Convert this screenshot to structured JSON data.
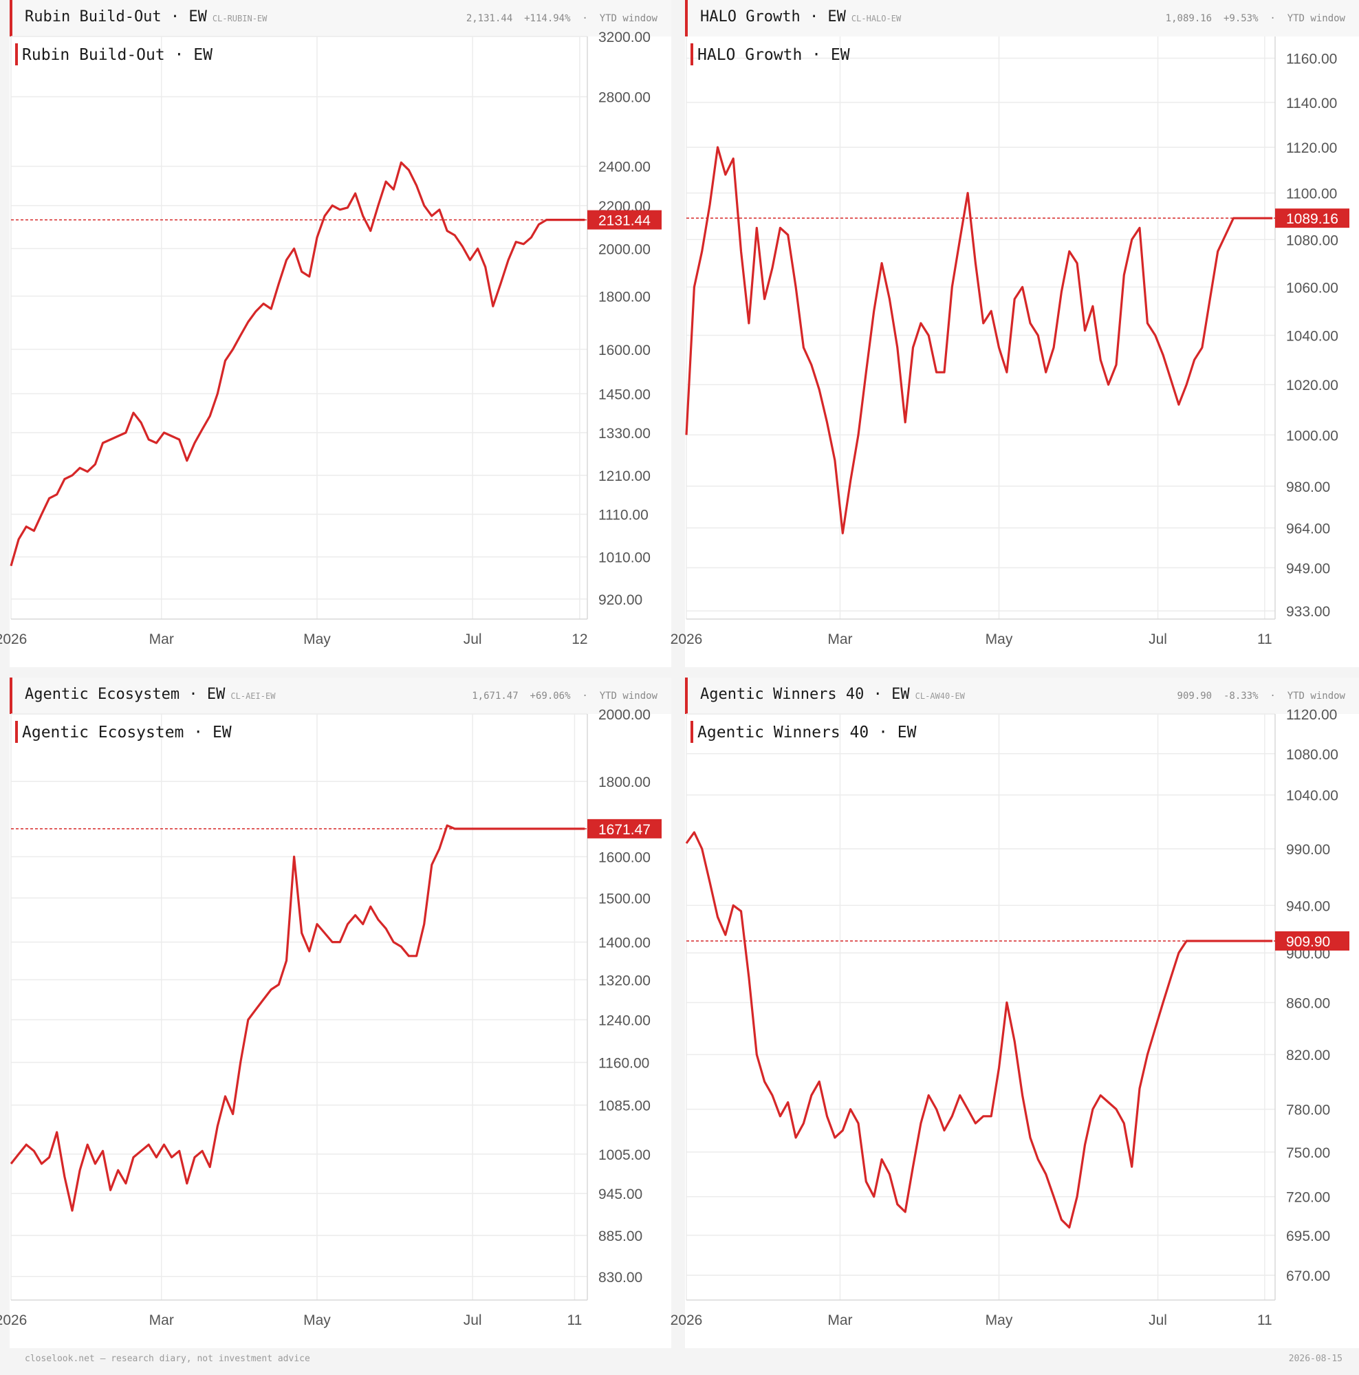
{
  "footer": {
    "left": "closelook.net — research diary, not investment advice",
    "right": "2026-08-15"
  },
  "panels": [
    {
      "header": {
        "title": "Rubin Build-Out · EW",
        "code": "CL-RUBIN-EW",
        "last": "2,131.44",
        "change": "+114.94%",
        "sep": "·",
        "window": "YTD window"
      }
    },
    {
      "header": {
        "title": "HALO Growth · EW",
        "code": "CL-HALO-EW",
        "last": "1,089.16",
        "change": "+9.53%",
        "sep": "·",
        "window": "YTD window"
      }
    },
    {
      "header": {
        "title": "Agentic Ecosystem · EW",
        "code": "CL-AEI-EW",
        "last": "1,671.47",
        "change": "+69.06%",
        "sep": "·",
        "window": "YTD window"
      }
    },
    {
      "header": {
        "title": "Agentic Winners 40 · EW",
        "code": "CL-AW40-EW",
        "last": "909.90",
        "change": "-8.33%",
        "sep": "·",
        "window": "YTD window"
      }
    }
  ],
  "chart_data": [
    {
      "type": "line",
      "title": "Rubin Build-Out · EW",
      "color": "#d62728",
      "scale": "log",
      "ylim": [
        880,
        3200
      ],
      "yticks": [
        "920.00",
        "1010.00",
        "1110.00",
        "1210.00",
        "1330.00",
        "1450.00",
        "1600.00",
        "1800.00",
        "2000.00",
        "2200.00",
        "2400.00",
        "2800.00",
        "3200.00"
      ],
      "xticks": [
        {
          "label": "2026",
          "day": 0
        },
        {
          "label": "Mar",
          "day": 59
        },
        {
          "label": "May",
          "day": 120
        },
        {
          "label": "Jul",
          "day": 181
        },
        {
          "label": "12",
          "day": 223
        }
      ],
      "last_label": "2131.44",
      "last_value": 2131.44,
      "x": [
        0,
        3,
        6,
        9,
        12,
        15,
        18,
        21,
        24,
        27,
        30,
        33,
        36,
        39,
        42,
        45,
        48,
        51,
        54,
        57,
        60,
        63,
        66,
        69,
        72,
        75,
        78,
        81,
        84,
        87,
        90,
        93,
        96,
        99,
        102,
        105,
        108,
        111,
        114,
        117,
        120,
        123,
        126,
        129,
        132,
        135,
        138,
        141,
        144,
        147,
        150,
        153,
        156,
        159,
        162,
        165,
        168,
        171,
        174,
        177,
        180,
        183,
        186,
        189,
        192,
        195,
        198,
        201,
        204,
        207,
        210,
        213,
        216,
        219,
        222,
        225
      ],
      "y": [
        990,
        1050,
        1080,
        1070,
        1110,
        1150,
        1160,
        1200,
        1210,
        1230,
        1220,
        1240,
        1300,
        1310,
        1320,
        1330,
        1390,
        1360,
        1310,
        1300,
        1330,
        1320,
        1310,
        1250,
        1300,
        1340,
        1380,
        1450,
        1560,
        1600,
        1650,
        1700,
        1740,
        1770,
        1750,
        1850,
        1950,
        2000,
        1900,
        1880,
        2050,
        2150,
        2200,
        2180,
        2190,
        2260,
        2150,
        2080,
        2200,
        2320,
        2280,
        2420,
        2380,
        2300,
        2200,
        2150,
        2180,
        2080,
        2060,
        2010,
        1950,
        2000,
        1920,
        1760,
        1850,
        1950,
        2030,
        2020,
        2050,
        2110,
        2131.44,
        2131.44,
        2131.44,
        2131.44,
        2131.44,
        2131.44
      ]
    },
    {
      "type": "line",
      "title": "HALO Growth · EW",
      "color": "#d62728",
      "scale": "log",
      "ylim": [
        930,
        1170
      ],
      "yticks": [
        "933.00",
        "949.00",
        "964.00",
        "980.00",
        "1000.00",
        "1020.00",
        "1040.00",
        "1060.00",
        "1080.00",
        "1100.00",
        "1120.00",
        "1140.00",
        "1160.00"
      ],
      "xticks": [
        {
          "label": "2026",
          "day": 0
        },
        {
          "label": "Mar",
          "day": 59
        },
        {
          "label": "May",
          "day": 120
        },
        {
          "label": "Jul",
          "day": 181
        },
        {
          "label": "11",
          "day": 222
        }
      ],
      "last_label": "1089.16",
      "last_value": 1089.16,
      "x": [
        0,
        3,
        6,
        9,
        12,
        15,
        18,
        21,
        24,
        27,
        30,
        33,
        36,
        39,
        42,
        45,
        48,
        51,
        54,
        57,
        60,
        63,
        66,
        69,
        72,
        75,
        78,
        81,
        84,
        87,
        90,
        93,
        96,
        99,
        102,
        105,
        108,
        111,
        114,
        117,
        120,
        123,
        126,
        129,
        132,
        135,
        138,
        141,
        144,
        147,
        150,
        153,
        156,
        159,
        162,
        165,
        168,
        171,
        174,
        177,
        180,
        183,
        186,
        189,
        192,
        195,
        198,
        201,
        204,
        207,
        210,
        213,
        216,
        219,
        222,
        225
      ],
      "y": [
        1000,
        1060,
        1075,
        1095,
        1120,
        1108,
        1115,
        1075,
        1045,
        1085,
        1055,
        1068,
        1085,
        1082,
        1060,
        1035,
        1028,
        1018,
        1005,
        990,
        962,
        982,
        1000,
        1025,
        1050,
        1070,
        1055,
        1035,
        1005,
        1035,
        1045,
        1040,
        1025,
        1025,
        1060,
        1080,
        1100,
        1070,
        1045,
        1050,
        1035,
        1025,
        1055,
        1060,
        1045,
        1040,
        1025,
        1035,
        1058,
        1075,
        1070,
        1042,
        1052,
        1030,
        1020,
        1028,
        1065,
        1080,
        1085,
        1045,
        1040,
        1032,
        1022,
        1012,
        1020,
        1030,
        1035,
        1055,
        1075,
        1082,
        1089.16,
        1089.16,
        1089.16,
        1089.16,
        1089.16,
        1089.16
      ]
    },
    {
      "type": "line",
      "title": "Agentic Ecosystem · EW",
      "color": "#d62728",
      "scale": "log",
      "ylim": [
        800,
        2000
      ],
      "yticks": [
        "830.00",
        "885.00",
        "945.00",
        "1005.00",
        "1085.00",
        "1160.00",
        "1240.00",
        "1320.00",
        "1400.00",
        "1500.00",
        "1600.00",
        "1800.00",
        "2000.00"
      ],
      "xticks": [
        {
          "label": "2026",
          "day": 0
        },
        {
          "label": "Mar",
          "day": 59
        },
        {
          "label": "May",
          "day": 120
        },
        {
          "label": "Jul",
          "day": 181
        },
        {
          "label": "11",
          "day": 221
        }
      ],
      "last_label": "1671.47",
      "last_value": 1671.47,
      "x": [
        0,
        3,
        6,
        9,
        12,
        15,
        18,
        21,
        24,
        27,
        30,
        33,
        36,
        39,
        42,
        45,
        48,
        51,
        54,
        57,
        60,
        63,
        66,
        69,
        72,
        75,
        78,
        81,
        84,
        87,
        90,
        93,
        96,
        99,
        102,
        105,
        108,
        111,
        114,
        117,
        120,
        123,
        126,
        129,
        132,
        135,
        138,
        141,
        144,
        147,
        150,
        153,
        156,
        159,
        162,
        165,
        168,
        171,
        174,
        177,
        180,
        183,
        186,
        189,
        192,
        195,
        198,
        201,
        204,
        207,
        210,
        213,
        216,
        219,
        222,
        225
      ],
      "y": [
        990,
        1005,
        1020,
        1010,
        990,
        1000,
        1040,
        970,
        920,
        980,
        1020,
        990,
        1010,
        950,
        980,
        960,
        1000,
        1010,
        1020,
        1000,
        1020,
        1000,
        1010,
        960,
        1000,
        1010,
        985,
        1050,
        1100,
        1070,
        1160,
        1240,
        1260,
        1280,
        1300,
        1310,
        1360,
        1600,
        1420,
        1380,
        1440,
        1420,
        1400,
        1400,
        1440,
        1460,
        1440,
        1480,
        1450,
        1430,
        1400,
        1390,
        1370,
        1370,
        1440,
        1580,
        1620,
        1680,
        1671.47,
        1671.47,
        1671.47,
        1671.47,
        1671.47,
        1671.47,
        1671.47,
        1671.47,
        1671.47,
        1671.47,
        1671.47,
        1671.47,
        1671.47,
        1671.47,
        1671.47,
        1671.47,
        1671.47,
        1671.47
      ]
    },
    {
      "type": "line",
      "title": "Agentic Winners 40 · EW",
      "color": "#d62728",
      "scale": "log",
      "ylim": [
        655,
        1120
      ],
      "yticks": [
        "670.00",
        "695.00",
        "720.00",
        "750.00",
        "780.00",
        "820.00",
        "860.00",
        "900.00",
        "940.00",
        "990.00",
        "1040.00",
        "1080.00",
        "1120.00"
      ],
      "xticks": [
        {
          "label": "2026",
          "day": 0
        },
        {
          "label": "Mar",
          "day": 59
        },
        {
          "label": "May",
          "day": 120
        },
        {
          "label": "Jul",
          "day": 181
        },
        {
          "label": "11",
          "day": 222
        }
      ],
      "last_label": "909.90",
      "last_value": 909.9,
      "x": [
        0,
        3,
        6,
        9,
        12,
        15,
        18,
        21,
        24,
        27,
        30,
        33,
        36,
        39,
        42,
        45,
        48,
        51,
        54,
        57,
        60,
        63,
        66,
        69,
        72,
        75,
        78,
        81,
        84,
        87,
        90,
        93,
        96,
        99,
        102,
        105,
        108,
        111,
        114,
        117,
        120,
        123,
        126,
        129,
        132,
        135,
        138,
        141,
        144,
        147,
        150,
        153,
        156,
        159,
        162,
        165,
        168,
        171,
        174,
        177,
        180,
        183,
        186,
        189,
        192,
        195,
        198,
        201,
        204,
        207,
        210,
        213,
        216,
        219,
        222,
        225
      ],
      "y": [
        995,
        1005,
        990,
        960,
        930,
        915,
        940,
        935,
        880,
        820,
        800,
        790,
        775,
        785,
        760,
        770,
        790,
        800,
        775,
        760,
        765,
        780,
        770,
        730,
        720,
        745,
        735,
        715,
        710,
        740,
        770,
        790,
        780,
        765,
        775,
        790,
        780,
        770,
        775,
        775,
        810,
        860,
        830,
        790,
        760,
        745,
        735,
        720,
        705,
        700,
        720,
        755,
        780,
        790,
        785,
        780,
        770,
        740,
        795,
        820,
        840,
        860,
        880,
        900,
        909.9,
        909.9,
        909.9,
        909.9,
        909.9,
        909.9,
        909.9,
        909.9,
        909.9,
        909.9,
        909.9,
        909.9
      ]
    }
  ]
}
